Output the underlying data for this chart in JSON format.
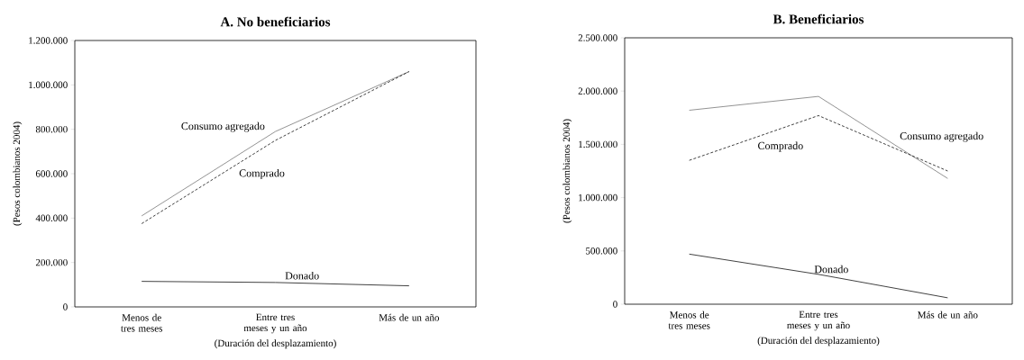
{
  "chart_data": [
    {
      "type": "line",
      "title": "A. No beneficiarios",
      "xlabel": "(Duración del desplazamiento)",
      "ylabel": "(Pesos colombianos 2004)",
      "categories": [
        "Menos de tres meses",
        "Entre tres meses y un año",
        "Más de un año"
      ],
      "series": [
        {
          "name": "Consumo agregado",
          "color": "#777777",
          "line_style": "solid",
          "values": [
            410000,
            790000,
            1060000
          ]
        },
        {
          "name": "Comprado",
          "color": "#111111",
          "line_style": "dashed",
          "values": [
            375000,
            750000,
            1060000
          ]
        },
        {
          "name": "Donado",
          "color": "#111111",
          "line_style": "solid",
          "values": [
            115000,
            110000,
            95000
          ]
        }
      ],
      "ylim": [
        0,
        1200000
      ],
      "yticks": [
        0,
        {
          "value": 200000,
          "label": "200.000"
        },
        {
          "value": 400000,
          "label": "400.000"
        },
        {
          "value": 600000,
          "label": "600.000"
        },
        {
          "value": 800000,
          "label": "800.000"
        },
        {
          "value": 1000000,
          "label": "1.000.000"
        },
        {
          "value": 1200000,
          "label": "1.200.000"
        }
      ]
    },
    {
      "type": "line",
      "title": "B. Beneficiarios",
      "xlabel": "(Duración del desplazamiento)",
      "ylabel": "(Pesos colombianos 2004)",
      "categories": [
        "Menos de tres meses",
        "Entre tres meses y un año",
        "Más de un año"
      ],
      "series": [
        {
          "name": "Consumo agregado",
          "color": "#777777",
          "line_style": "solid",
          "values": [
            1820000,
            1950000,
            1180000
          ]
        },
        {
          "name": "Comprado",
          "color": "#111111",
          "line_style": "dashed",
          "values": [
            1350000,
            1770000,
            1250000
          ]
        },
        {
          "name": "Donado",
          "color": "#111111",
          "line_style": "solid",
          "values": [
            470000,
            280000,
            60000
          ]
        }
      ],
      "ylim": [
        0,
        2500000
      ],
      "yticks": [
        0,
        {
          "value": 500000,
          "label": "500.000"
        },
        {
          "value": 1000000,
          "label": "1.000.000"
        },
        {
          "value": 1500000,
          "label": "1.500.000"
        },
        {
          "value": 2000000,
          "label": "2.000.000"
        },
        {
          "value": 2500000,
          "label": "2.500.000"
        }
      ]
    }
  ]
}
